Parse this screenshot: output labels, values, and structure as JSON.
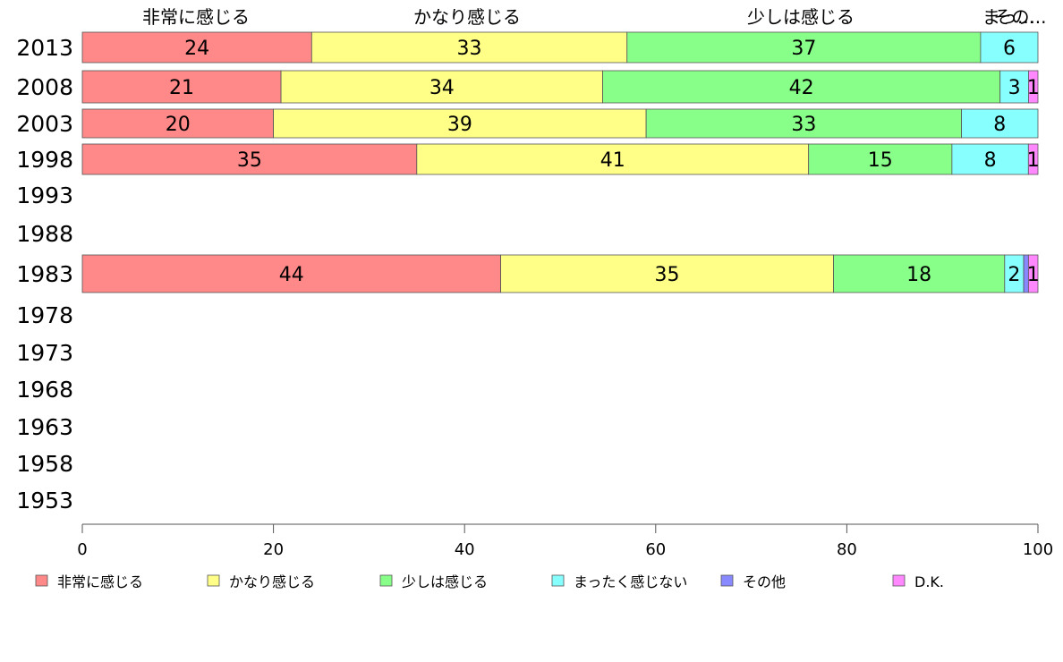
{
  "chart_data": {
    "type": "bar",
    "orientation": "horizontal",
    "stacked": true,
    "categories": [
      "2013",
      "2008",
      "2003",
      "1998",
      "1993",
      "1988",
      "1983",
      "1978",
      "1973",
      "1968",
      "1963",
      "1958",
      "1953"
    ],
    "xlim": [
      0,
      100
    ],
    "xticks": [
      0,
      20,
      40,
      60,
      80,
      100
    ],
    "top_labels": [
      "非常に感じる",
      "かなり感じる",
      "少しは感じる",
      "まっ...",
      "その..."
    ],
    "legend_position": "bottom",
    "series": [
      {
        "name": "非常に感じる",
        "color": "#ff8888",
        "values": [
          24,
          21,
          20,
          35,
          null,
          null,
          44,
          null,
          null,
          null,
          null,
          null,
          null
        ]
      },
      {
        "name": "かなり感じる",
        "color": "#ffff88",
        "values": [
          33,
          34,
          39,
          41,
          null,
          null,
          35,
          null,
          null,
          null,
          null,
          null,
          null
        ]
      },
      {
        "name": "少しは感じる",
        "color": "#88ff88",
        "values": [
          37,
          42,
          33,
          15,
          null,
          null,
          18,
          null,
          null,
          null,
          null,
          null,
          null
        ]
      },
      {
        "name": "まったく感じない",
        "color": "#88ffff",
        "values": [
          6,
          3,
          8,
          8,
          null,
          null,
          2,
          null,
          null,
          null,
          null,
          null,
          null
        ]
      },
      {
        "name": "その他",
        "color": "#8888ff",
        "values": [
          0,
          0,
          0,
          0,
          null,
          null,
          0.5,
          null,
          null,
          null,
          null,
          null,
          null
        ]
      },
      {
        "name": "D.K.",
        "color": "#ff88ff",
        "values": [
          0,
          1,
          0,
          1,
          null,
          null,
          1,
          null,
          null,
          null,
          null,
          null,
          null
        ]
      }
    ]
  }
}
